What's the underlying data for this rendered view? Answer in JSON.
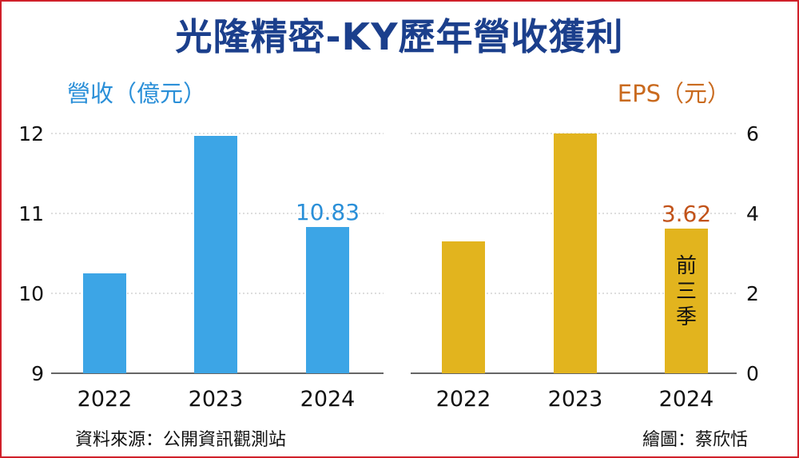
{
  "title": "光隆精密-KY歷年營收獲利",
  "source": "資料來源：公開資訊觀測站",
  "credit": "繪圖：蔡欣恬",
  "colors": {
    "revenue": "#3ca5e6",
    "eps": "#e2b41e",
    "grid": "#c9c9c9",
    "frame": "#d0202a"
  },
  "chart_data": [
    {
      "type": "bar",
      "ylabel": "營收（億元）",
      "categories": [
        "2022",
        "2023",
        "2024"
      ],
      "values": [
        10.25,
        11.97,
        10.83
      ],
      "ylim": [
        9,
        12
      ],
      "yticks": [
        "9",
        "10",
        "11",
        "12"
      ],
      "data_labels": {
        "2024": "10.83"
      },
      "grid": true
    },
    {
      "type": "bar",
      "ylabel": "EPS（元）",
      "categories": [
        "2022",
        "2023",
        "2024"
      ],
      "values": [
        3.3,
        6.0,
        3.62
      ],
      "ylim": [
        0,
        6
      ],
      "yticks": [
        "0",
        "2",
        "4",
        "6"
      ],
      "data_labels": {
        "2024": "3.62"
      },
      "bar_note": "前三季",
      "grid": true
    }
  ]
}
